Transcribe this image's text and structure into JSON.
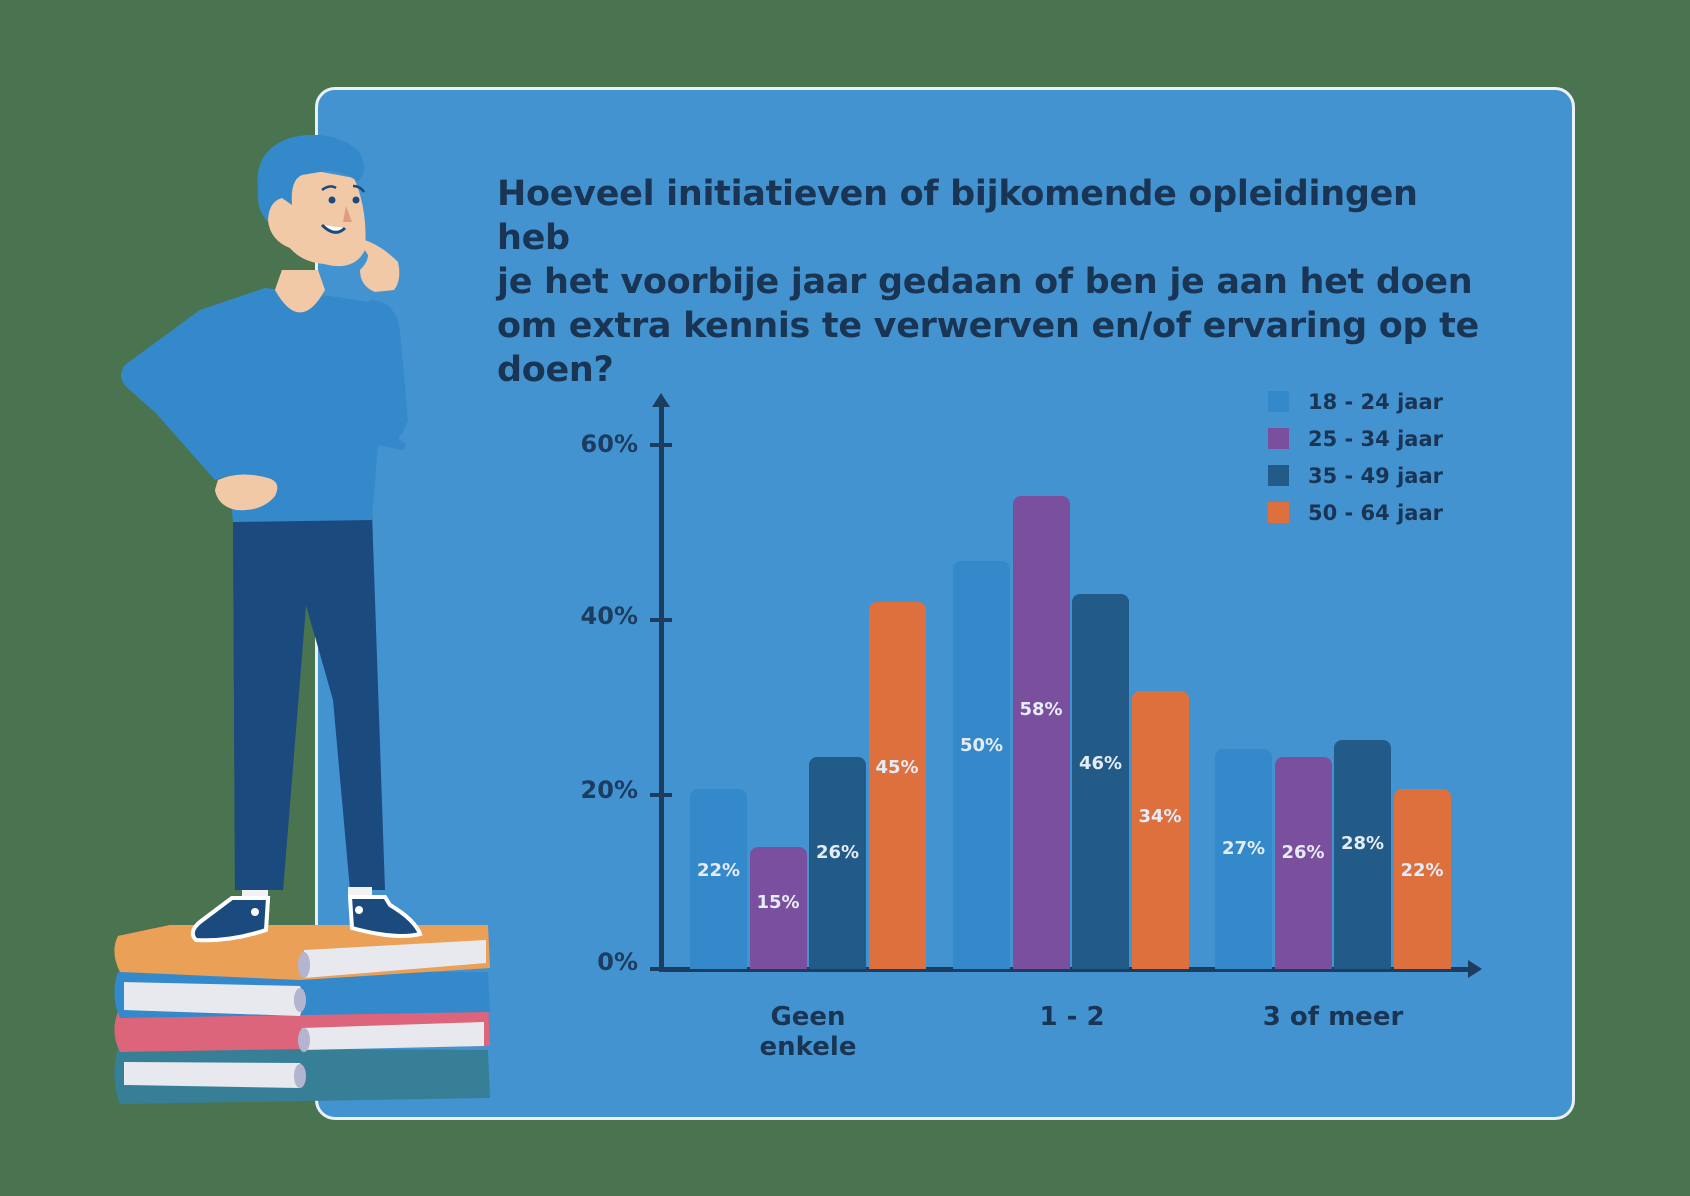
{
  "panel": {
    "background": "#4493d1",
    "border": "#e9f0f6"
  },
  "title": "Hoeveel initiatieven of bijkomende opleidingen heb je het voorbije jaar gedaan of ben je aan het doen om extra kennis te verwerven en/of ervaring op te doen?",
  "title_lines": [
    "Hoeveel initiatieven of bijkomende opleidingen heb",
    "je het voorbije jaar gedaan of ben je aan het doen",
    "om extra kennis te verwerven en/of ervaring op te",
    "doen?"
  ],
  "yaxis": {
    "ticks": [
      "0%",
      "20%",
      "40%",
      "60%"
    ]
  },
  "legend": [
    {
      "label": "18 - 24 jaar",
      "color": "#3489cb"
    },
    {
      "label": "25 - 34 jaar",
      "color": "#7a4f9e"
    },
    {
      "label": "35 - 49 jaar",
      "color": "#225a88"
    },
    {
      "label": "50 - 64 jaar",
      "color": "#de703e"
    }
  ],
  "categories_display": [
    [
      "Geen",
      "enkele"
    ],
    [
      "1 - 2"
    ],
    [
      "3 of meer"
    ]
  ],
  "chart_data": {
    "type": "bar",
    "title": "Hoeveel initiatieven of bijkomende opleidingen heb je het voorbije jaar gedaan of ben je aan het doen om extra kennis te verwerven en/of ervaring op te doen?",
    "categories": [
      "Geen enkele",
      "1 - 2",
      "3 of meer"
    ],
    "series": [
      {
        "name": "18 - 24 jaar",
        "color": "#3489cb",
        "values": [
          22,
          50,
          27
        ]
      },
      {
        "name": "25 - 34 jaar",
        "color": "#7a4f9e",
        "values": [
          15,
          58,
          26
        ]
      },
      {
        "name": "35 - 49 jaar",
        "color": "#225a88",
        "values": [
          26,
          46,
          28
        ]
      },
      {
        "name": "50 - 64 jaar",
        "color": "#de703e",
        "values": [
          45,
          34,
          22
        ]
      }
    ],
    "value_labels": [
      [
        "22%",
        "15%",
        "26%",
        "45%"
      ],
      [
        "50%",
        "58%",
        "46%",
        "34%"
      ],
      [
        "27%",
        "26%",
        "28%",
        "22%"
      ]
    ],
    "xlabel": "",
    "ylabel": "",
    "yticks": [
      "0%",
      "20%",
      "40%",
      "60%"
    ],
    "ylim": [
      0,
      65
    ],
    "grid": false,
    "legend_position": "top-right"
  }
}
